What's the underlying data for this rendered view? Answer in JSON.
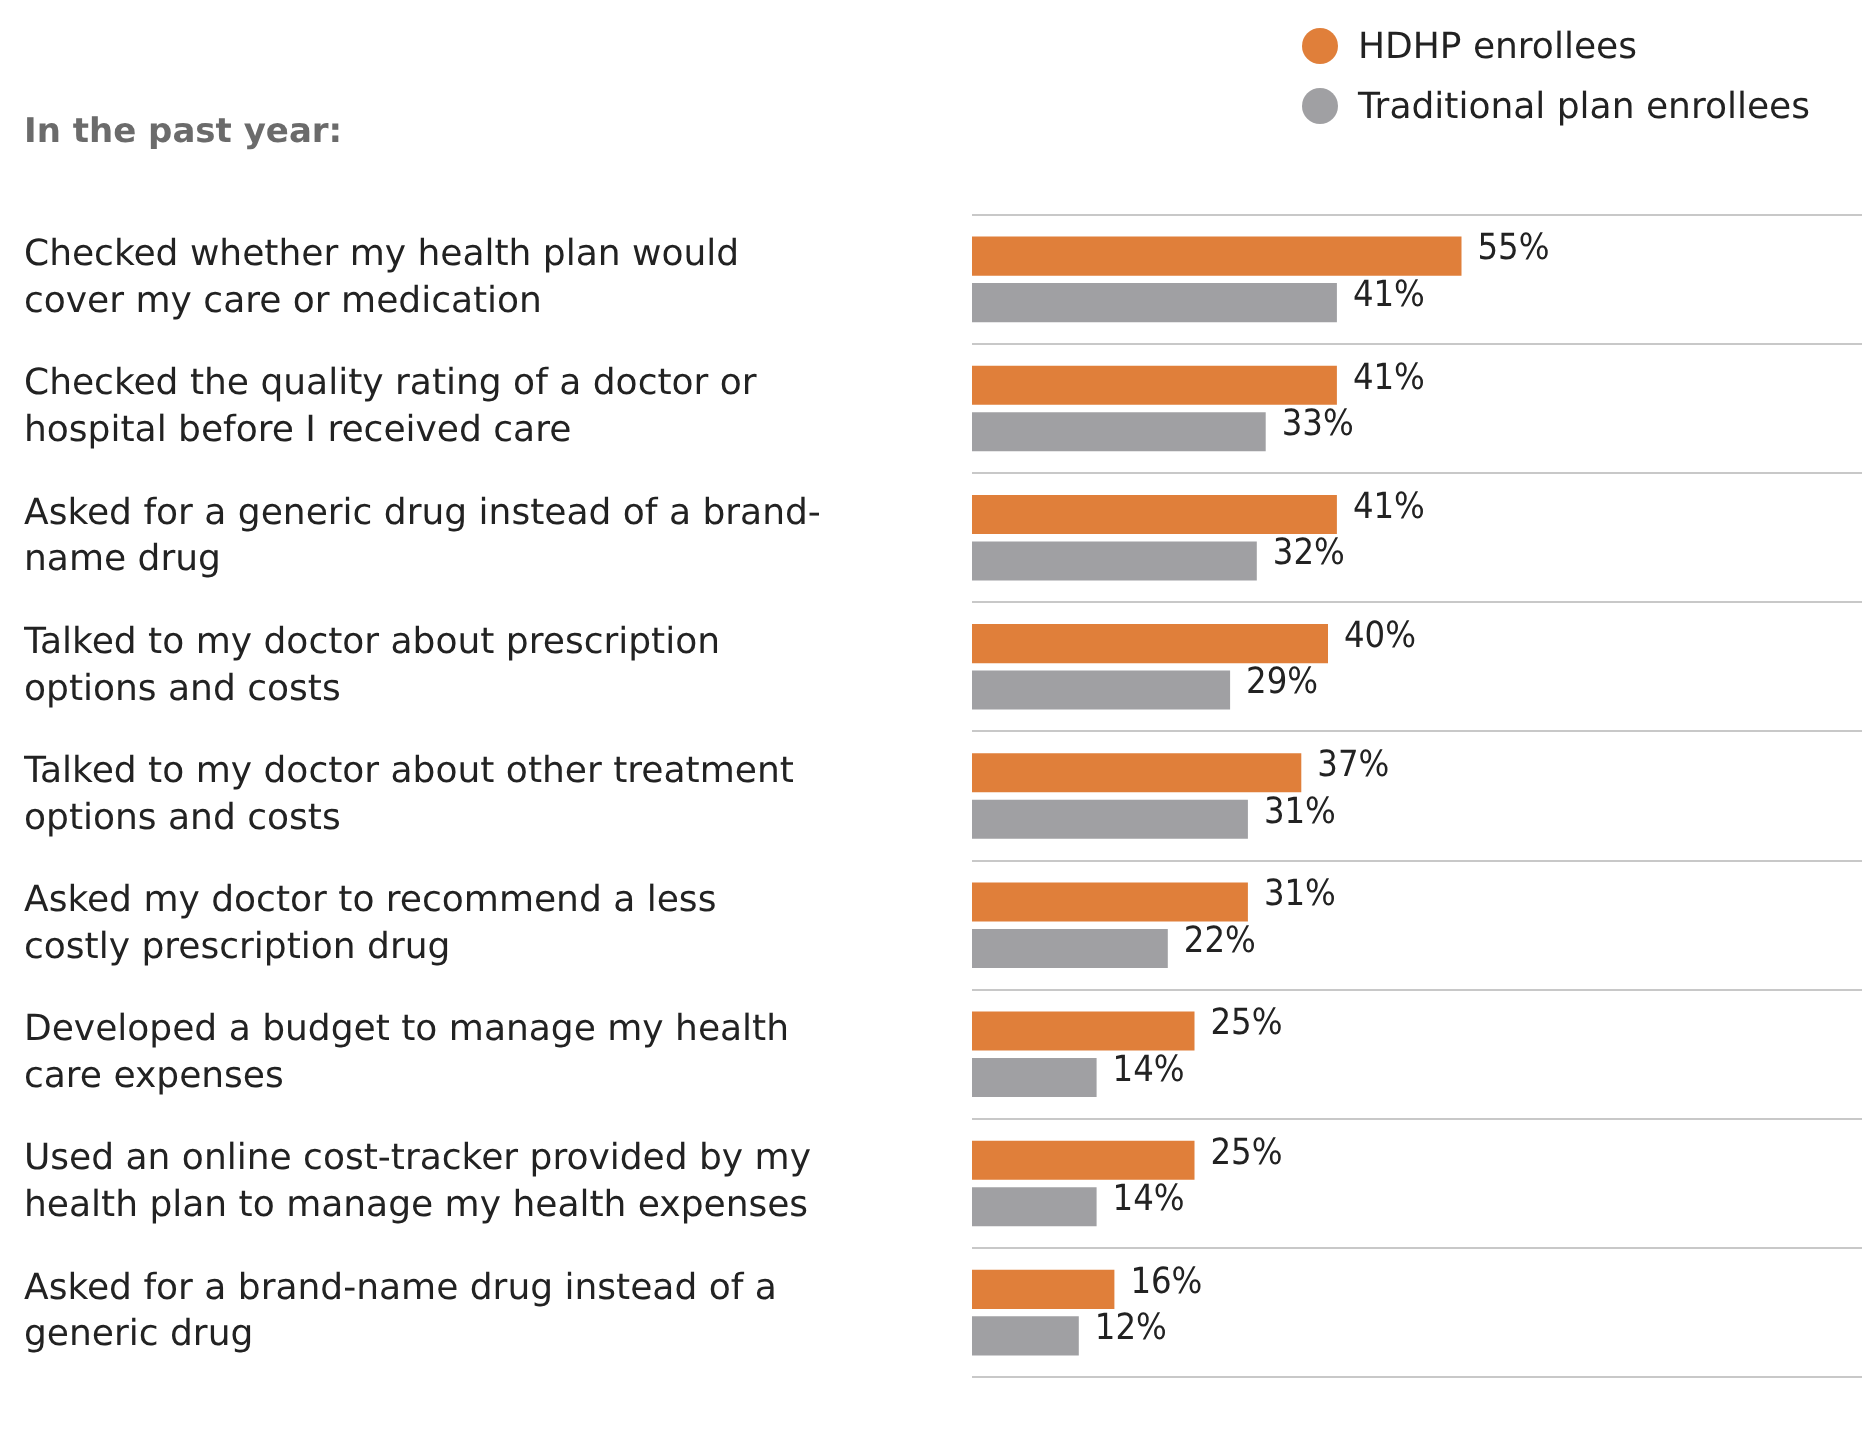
{
  "chart_data": {
    "type": "bar",
    "orientation": "horizontal",
    "title": "In the past year:",
    "categories": [
      "Checked whether my health plan would cover my care or medication",
      "Checked the quality rating of a doctor or hospital before I received care",
      "Asked for a generic drug instead of a brand-name drug",
      "Talked to my doctor about prescription options and costs",
      "Talked to my doctor about other treatment options and costs",
      "Asked my doctor to recommend a less costly prescription drug",
      "Developed a budget to manage my health care expenses",
      "Used an online cost-tracker provided by my health plan to manage my health expenses",
      "Asked for a brand-name drug instead of a generic drug"
    ],
    "series": [
      {
        "name": "HDHP enrollees",
        "color": "#e07f3a",
        "values": [
          55,
          41,
          41,
          40,
          37,
          31,
          25,
          25,
          16
        ],
        "value_labels": [
          "55%",
          "41%",
          "41%",
          "40%",
          "37%",
          "31%",
          "25%",
          "25%",
          "16%"
        ]
      },
      {
        "name": "Traditional plan enrollees",
        "color": "#a0a0a3",
        "values": [
          41,
          33,
          32,
          29,
          31,
          22,
          14,
          14,
          12
        ],
        "value_labels": [
          "41%",
          "33%",
          "32%",
          "29%",
          "31%",
          "22%",
          "14%",
          "14%",
          "12%"
        ]
      }
    ],
    "xlim": [
      0,
      100
    ],
    "tick_labels": "y",
    "grid": "y",
    "legend": "top right"
  }
}
